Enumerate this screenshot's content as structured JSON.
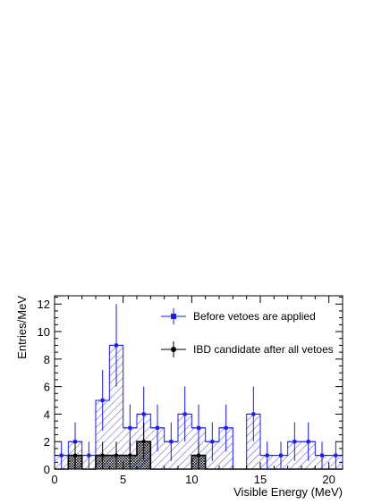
{
  "chart_data": {
    "type": "histogram",
    "xlabel": "Visible Energy (MeV)",
    "ylabel": "Entries/MeV",
    "xlim": [
      0,
      21
    ],
    "ylim": [
      0,
      12.6
    ],
    "x_ticks": [
      "0",
      "5",
      "10",
      "15",
      "20"
    ],
    "y_ticks": [
      "0",
      "2",
      "4",
      "6",
      "8",
      "10",
      "12"
    ],
    "bin_edges": [
      0,
      1,
      2,
      3,
      4,
      5,
      6,
      7,
      8,
      9,
      10,
      11,
      12,
      13,
      14,
      15,
      16,
      17,
      18,
      19,
      20,
      21
    ],
    "series": [
      {
        "name": "Before vetoes are applied",
        "style": "hatched",
        "color": "#1a1aff",
        "values": [
          1,
          2,
          1,
          5,
          9,
          3,
          4,
          3,
          2,
          4,
          3,
          2,
          3,
          0,
          4,
          1,
          1,
          2,
          2,
          1,
          1
        ],
        "errors": [
          1,
          1.4,
          1,
          2.2,
          3,
          1.7,
          2,
          1.7,
          1.4,
          2,
          1.7,
          1.4,
          1.7,
          0,
          2,
          1,
          1,
          1.4,
          1.4,
          1,
          1
        ]
      },
      {
        "name": "IBD candidate after all vetoes",
        "style": "crosshatched",
        "color": "#000000",
        "values": [
          0,
          1,
          0,
          1,
          1,
          1,
          2,
          0,
          0,
          0,
          1,
          0,
          0,
          0,
          0,
          0,
          0,
          0,
          0,
          0,
          0
        ],
        "errors": [
          0,
          1,
          0,
          1,
          1,
          1,
          1.4,
          0,
          0,
          0,
          1,
          0,
          0,
          0,
          0,
          0,
          0,
          0,
          0,
          0,
          0
        ]
      }
    ],
    "legend": {
      "placement": "top-right",
      "entries": [
        "Before vetoes are applied",
        "IBD candidate after all vetoes"
      ]
    },
    "grid": false
  }
}
